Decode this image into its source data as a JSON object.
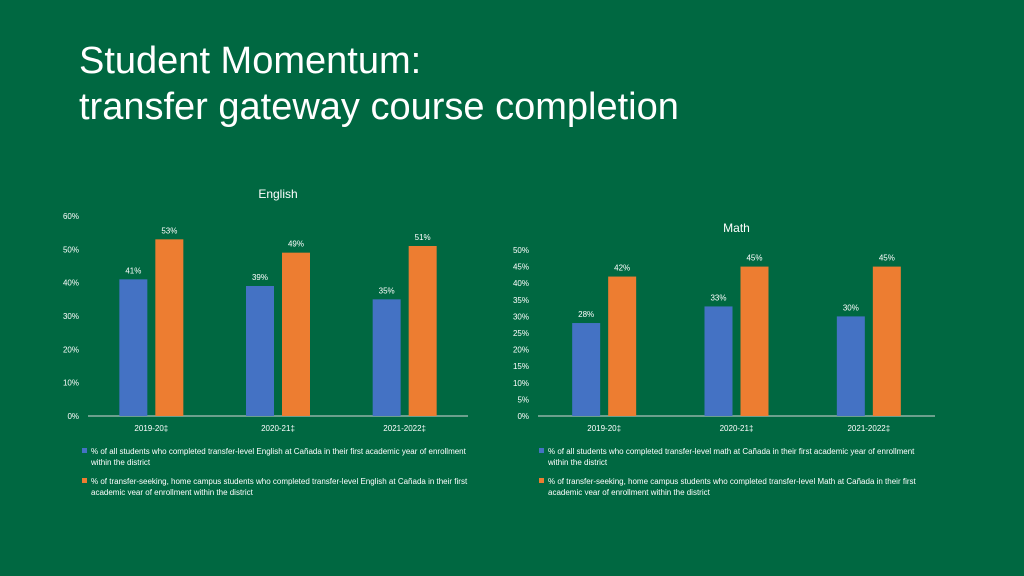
{
  "slide": {
    "title_line1": "Student Momentum:",
    "title_line2": "transfer gateway course completion"
  },
  "colors": {
    "background": "#006841",
    "series_all": "#4472C4",
    "series_transfer": "#ED7D31"
  },
  "chart_data": [
    {
      "type": "bar",
      "title": "English",
      "categories": [
        "2019-20‡",
        "2020-21‡",
        "2021-2022‡"
      ],
      "series": [
        {
          "name": "% of all students who completed transfer-level English at Cañada in their first academic year of enrollment within the district",
          "values": [
            41,
            39,
            35
          ],
          "labels": [
            "41%",
            "39%",
            "35%"
          ]
        },
        {
          "name": "% of transfer-seeking, home campus students who completed transfer-level English at Cañada in their first academic year of enrollment within the district",
          "values": [
            53,
            49,
            51
          ],
          "labels": [
            "53%",
            "49%",
            "51%"
          ]
        }
      ],
      "ylim": [
        0,
        60
      ],
      "yticks": [
        "0%",
        "10%",
        "20%",
        "30%",
        "40%",
        "50%",
        "60%"
      ],
      "grid": false,
      "legend": "bottom"
    },
    {
      "type": "bar",
      "title": "Math",
      "categories": [
        "2019-20‡",
        "2020-21‡",
        "2021-2022‡"
      ],
      "series": [
        {
          "name": "% of all students who completed transfer-level math at Cañada in their first academic year of enrollment within the district",
          "values": [
            28,
            33,
            30
          ],
          "labels": [
            "28%",
            "33%",
            "30%"
          ]
        },
        {
          "name": "% of transfer-seeking, home campus students who completed transfer-level Math at Cañada in their first academic year of enrollment within the district",
          "values": [
            42,
            45,
            45
          ],
          "labels": [
            "42%",
            "45%",
            "45%"
          ]
        }
      ],
      "ylim": [
        0,
        50
      ],
      "yticks": [
        "0%",
        "5%",
        "10%",
        "15%",
        "20%",
        "25%",
        "30%",
        "35%",
        "40%",
        "45%",
        "50%"
      ],
      "grid": false,
      "legend": "bottom"
    }
  ],
  "legends": {
    "english": [
      "% of all students who completed transfer-level English at Cañada in their first academic year of enrollment within the district",
      "% of transfer-seeking, home campus students who completed transfer-level English at Cañada in their first academic year of enrollment within the district"
    ],
    "math": [
      "% of all students who completed transfer-level math at Cañada in their first academic year of enrollment within the district",
      "% of transfer-seeking, home campus students who completed transfer-level Math at Cañada in their first academic year of enrollment within the district"
    ]
  }
}
